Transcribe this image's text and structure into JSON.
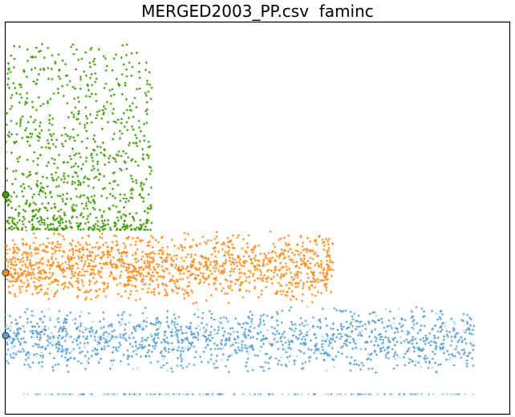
{
  "chart_data": {
    "type": "scatter",
    "title": "MERGED2003_PP.csv  faminc",
    "xlabel": "",
    "ylabel": "",
    "axes_ticks": "none",
    "grid": false,
    "legend": "none",
    "x_range": [
      0,
      1
    ],
    "y_range": [
      0,
      1
    ],
    "series": [
      {
        "color": "#5aa0d0",
        "color_light": "#a8d8f0",
        "marker": "plus",
        "extent_x": [
          0.0,
          0.93
        ],
        "band_y": [
          0.1,
          0.28
        ],
        "approx_points": 1400,
        "mean_marker_y": 0.2,
        "baseline_row_y": 0.05
      },
      {
        "color": "#ff8c1a",
        "marker": "plus",
        "extent_x": [
          0.0,
          0.65
        ],
        "band_y": [
          0.28,
          0.47
        ],
        "approx_points": 1400,
        "mean_marker_y": 0.36
      },
      {
        "color": "#3a9a00",
        "marker": "plus",
        "extent_x": [
          0.0,
          0.29
        ],
        "band_y": [
          0.47,
          0.95
        ],
        "approx_points": 900,
        "mean_marker_y": 0.56
      }
    ]
  }
}
